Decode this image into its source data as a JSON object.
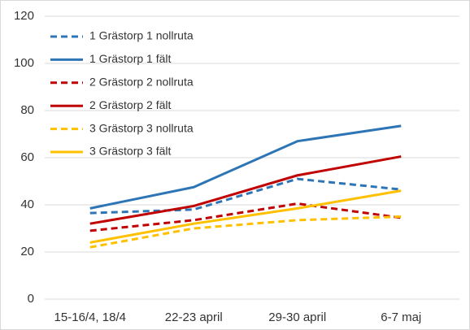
{
  "chart_data": {
    "type": "line",
    "categories": [
      "15-16/4, 18/4",
      "22-23 april",
      "29-30 april",
      "6-7 maj"
    ],
    "series": [
      {
        "name": "1 Grästorp 1 nollruta",
        "color": "#2e75b6",
        "dashed": true,
        "values": [
          36.5,
          38,
          51,
          46.5
        ]
      },
      {
        "name": "1 Grästorp 1 fält",
        "color": "#2e75b6",
        "dashed": false,
        "values": [
          38.5,
          47.5,
          67,
          73.5
        ]
      },
      {
        "name": "2 Grästorp 2 nollruta",
        "color": "#c00000",
        "dashed": true,
        "values": [
          29,
          33.5,
          40.5,
          34.5
        ]
      },
      {
        "name": "2 Grästorp 2 fält",
        "color": "#c00000",
        "dashed": false,
        "values": [
          32,
          39.5,
          52.5,
          60.5
        ]
      },
      {
        "name": "3 Grästorp 3 nollruta",
        "color": "#ffc000",
        "dashed": true,
        "values": [
          22,
          30,
          33.5,
          35
        ]
      },
      {
        "name": "3 Grästorp 3 fält",
        "color": "#ffc000",
        "dashed": false,
        "values": [
          24,
          32,
          38.5,
          46
        ]
      }
    ],
    "ylim": [
      0,
      120
    ],
    "yticks": [
      0,
      20,
      40,
      60,
      80,
      100,
      120
    ],
    "grid": true,
    "legend": "upper left"
  }
}
